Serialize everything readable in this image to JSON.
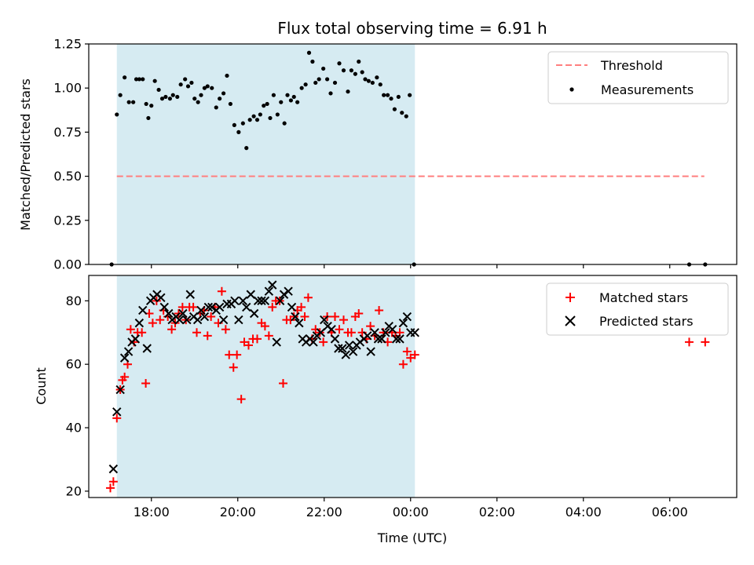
{
  "chart_data": {
    "title": "Flux total observing time = 6.91 h",
    "xlabel": "Time (UTC)",
    "x_ticks": [
      "18:00",
      "20:00",
      "22:00",
      "00:00",
      "02:00",
      "04:00",
      "06:00"
    ],
    "x_tick_hours": [
      18,
      20,
      22,
      24,
      26,
      28,
      30
    ],
    "xlim": [
      16.55,
      31.55
    ],
    "shaded_interval": [
      17.2,
      24.1
    ],
    "shade_color": "#add8e6",
    "panels": [
      {
        "type": "scatter",
        "ylabel": "Matched/Predicted stars",
        "ylim": [
          0,
          1.25
        ],
        "yticks": [
          "0.00",
          "0.25",
          "0.50",
          "0.75",
          "1.00",
          "1.25"
        ],
        "ytick_values": [
          0,
          0.25,
          0.5,
          0.75,
          1.0,
          1.25
        ],
        "threshold": {
          "name": "Threshold",
          "value": 0.5,
          "x_range": [
            17.2,
            30.8
          ],
          "color": "#ff7f7f"
        },
        "legend_position": "upper right",
        "series": [
          {
            "name": "Measurements",
            "color": "#000000",
            "x": [
              17.08,
              17.2,
              17.28,
              17.38,
              17.48,
              17.58,
              17.65,
              17.72,
              17.8,
              17.88,
              17.93,
              18.0,
              18.08,
              18.17,
              18.25,
              18.33,
              18.43,
              18.5,
              18.6,
              18.68,
              18.78,
              18.85,
              18.93,
              19.0,
              19.08,
              19.15,
              19.23,
              19.3,
              19.4,
              19.5,
              19.58,
              19.67,
              19.75,
              19.83,
              19.92,
              20.02,
              20.12,
              20.2,
              20.28,
              20.37,
              20.45,
              20.52,
              20.6,
              20.68,
              20.75,
              20.83,
              20.92,
              21.0,
              21.08,
              21.15,
              21.23,
              21.3,
              21.38,
              21.48,
              21.57,
              21.65,
              21.73,
              21.8,
              21.88,
              21.98,
              22.07,
              22.15,
              22.25,
              22.35,
              22.45,
              22.55,
              22.63,
              22.72,
              22.8,
              22.88,
              22.95,
              23.03,
              23.12,
              23.22,
              23.3,
              23.38,
              23.47,
              23.55,
              23.63,
              23.72,
              23.8,
              23.9,
              23.98,
              24.08,
              30.45,
              30.82
            ],
            "values": [
              0,
              0.85,
              0.96,
              1.06,
              0.92,
              0.92,
              1.05,
              1.05,
              1.05,
              0.91,
              0.83,
              0.9,
              1.04,
              0.99,
              0.94,
              0.95,
              0.94,
              0.96,
              0.95,
              1.02,
              1.05,
              1.01,
              1.03,
              0.94,
              0.92,
              0.96,
              1.0,
              1.01,
              1.0,
              0.89,
              0.94,
              0.97,
              1.07,
              0.91,
              0.79,
              0.75,
              0.8,
              0.66,
              0.82,
              0.84,
              0.82,
              0.85,
              0.9,
              0.91,
              0.83,
              0.96,
              0.85,
              0.92,
              0.8,
              0.96,
              0.93,
              0.95,
              0.92,
              1.0,
              1.02,
              1.2,
              1.15,
              1.03,
              1.05,
              1.11,
              1.05,
              0.97,
              1.03,
              1.14,
              1.1,
              0.98,
              1.1,
              1.08,
              1.15,
              1.09,
              1.05,
              1.04,
              1.03,
              1.06,
              1.02,
              0.96,
              0.96,
              0.94,
              0.88,
              0.95,
              0.86,
              0.84,
              0.96,
              0.0,
              0.0,
              0.0
            ]
          }
        ]
      },
      {
        "type": "scatter",
        "ylabel": "Count",
        "ylim": [
          18,
          88
        ],
        "yticks": [
          "20",
          "40",
          "60",
          "80"
        ],
        "ytick_values": [
          20,
          40,
          60,
          80
        ],
        "legend_position": "upper right",
        "series": [
          {
            "name": "Matched stars",
            "marker": "plus",
            "color": "#ff0000",
            "x": [
              17.05,
              17.12,
              17.2,
              17.28,
              17.33,
              17.38,
              17.45,
              17.52,
              17.6,
              17.68,
              17.78,
              17.87,
              17.95,
              18.03,
              18.12,
              18.2,
              18.28,
              18.38,
              18.47,
              18.55,
              18.63,
              18.72,
              18.8,
              18.88,
              18.97,
              19.05,
              19.13,
              19.22,
              19.3,
              19.38,
              19.47,
              19.55,
              19.63,
              19.72,
              19.8,
              19.9,
              19.98,
              20.08,
              20.15,
              20.25,
              20.35,
              20.45,
              20.55,
              20.63,
              20.72,
              20.8,
              20.88,
              20.97,
              21.05,
              21.13,
              21.22,
              21.3,
              21.38,
              21.47,
              21.55,
              21.63,
              21.72,
              21.8,
              21.9,
              21.98,
              22.07,
              22.17,
              22.25,
              22.35,
              22.45,
              22.55,
              22.63,
              22.72,
              22.8,
              22.88,
              22.98,
              23.07,
              23.17,
              23.27,
              23.37,
              23.47,
              23.57,
              23.65,
              23.75,
              23.83,
              23.92,
              24.0,
              24.1,
              30.45,
              30.82
            ],
            "values": [
              21,
              23,
              43,
              52,
              55,
              56,
              60,
              71,
              67,
              70,
              70,
              54,
              76,
              73,
              80,
              74,
              77,
              75,
              71,
              73,
              76,
              78,
              74,
              78,
              78,
              70,
              76,
              77,
              69,
              75,
              78,
              73,
              83,
              71,
              63,
              59,
              63,
              49,
              67,
              66,
              68,
              68,
              73,
              72,
              69,
              78,
              80,
              80,
              54,
              74,
              74,
              75,
              77,
              78,
              75,
              81,
              68,
              71,
              70,
              67,
              75,
              70,
              75,
              71,
              74,
              70,
              70,
              75,
              76,
              70,
              68,
              72,
              69,
              77,
              70,
              67,
              70,
              69,
              70,
              60,
              64,
              62,
              63,
              67,
              67
            ]
          },
          {
            "name": "Predicted stars",
            "marker": "x",
            "color": "#000000",
            "x": [
              17.12,
              17.2,
              17.28,
              17.38,
              17.47,
              17.55,
              17.63,
              17.72,
              17.8,
              17.9,
              17.98,
              18.05,
              18.13,
              18.22,
              18.3,
              18.4,
              18.48,
              18.57,
              18.65,
              18.73,
              18.82,
              18.9,
              18.98,
              19.07,
              19.15,
              19.23,
              19.32,
              19.4,
              19.5,
              19.58,
              19.67,
              19.75,
              19.85,
              19.93,
              20.02,
              20.12,
              20.2,
              20.3,
              20.38,
              20.47,
              20.55,
              20.63,
              20.72,
              20.8,
              20.9,
              20.98,
              21.07,
              21.17,
              21.25,
              21.33,
              21.42,
              21.5,
              21.58,
              21.67,
              21.75,
              21.83,
              21.92,
              22.0,
              22.08,
              22.17,
              22.25,
              22.33,
              22.42,
              22.5,
              22.58,
              22.67,
              22.75,
              22.83,
              22.92,
              23.0,
              23.08,
              23.17,
              23.25,
              23.33,
              23.42,
              23.5,
              23.58,
              23.67,
              23.75,
              23.83,
              23.92,
              24.0,
              24.1
            ],
            "values": [
              27,
              45,
              52,
              62,
              64,
              67,
              68,
              73,
              77,
              65,
              80,
              81,
              82,
              81,
              78,
              76,
              74,
              75,
              74,
              76,
              74,
              82,
              75,
              74,
              77,
              75,
              78,
              78,
              77,
              78,
              74,
              79,
              79,
              80,
              74,
              80,
              78,
              82,
              76,
              80,
              80,
              80,
              83,
              85,
              67,
              80,
              82,
              83,
              78,
              75,
              73,
              68,
              67,
              68,
              67,
              69,
              70,
              74,
              72,
              71,
              68,
              65,
              65,
              63,
              66,
              64,
              66,
              67,
              68,
              69,
              64,
              70,
              68,
              68,
              70,
              72,
              71,
              68,
              68,
              73,
              75,
              70,
              70
            ]
          }
        ]
      }
    ]
  }
}
